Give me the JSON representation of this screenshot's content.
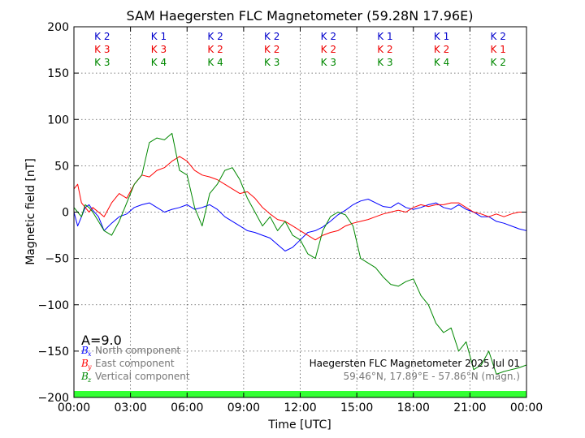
{
  "chart_data": {
    "type": "line",
    "title": "SAM Haegersten FLC Magnetometer (59.28N 17.96E)",
    "xlabel": "Time [UTC]",
    "ylabel": "Magnetic field [nT]",
    "xlim": [
      0,
      24
    ],
    "ylim": [
      -200,
      200
    ],
    "x_ticks": [
      0,
      3,
      6,
      9,
      12,
      15,
      18,
      21,
      24
    ],
    "x_tick_labels": [
      "00:00",
      "03:00",
      "06:00",
      "09:00",
      "12:00",
      "15:00",
      "18:00",
      "21:00",
      "00:00"
    ],
    "y_ticks": [
      -200,
      -150,
      -100,
      -50,
      0,
      50,
      100,
      150,
      200
    ],
    "y_tick_labels": [
      "−200",
      "−150",
      "−100",
      "−50",
      "0",
      "50",
      "100",
      "150",
      "200"
    ],
    "grid": true,
    "k_index": {
      "centers": [
        1.5,
        4.5,
        7.5,
        10.5,
        13.5,
        16.5,
        19.5,
        22.5
      ],
      "rows": [
        {
          "color": "#0000cc",
          "labels": [
            "K 2",
            "K 1",
            "K 2",
            "K 2",
            "K 2",
            "K 1",
            "K 1",
            "K 2"
          ]
        },
        {
          "color": "#ee0000",
          "labels": [
            "K 3",
            "K 3",
            "K 2",
            "K 2",
            "K 2",
            "K 2",
            "K 2",
            "K 1"
          ]
        },
        {
          "color": "#008800",
          "labels": [
            "K 3",
            "K 4",
            "K 4",
            "K 3",
            "K 3",
            "K 3",
            "K 4",
            "K 2"
          ]
        }
      ]
    },
    "activity_band": {
      "color": "#33ff33",
      "y_range": [
        -200,
        -193
      ]
    },
    "series": [
      {
        "name": "North component",
        "symbol": "B",
        "subscript": "x",
        "color": "#0000ff",
        "x": [
          0,
          0.2,
          0.4,
          0.6,
          0.8,
          1.0,
          1.3,
          1.6,
          2.0,
          2.4,
          2.8,
          3.2,
          3.6,
          4.0,
          4.4,
          4.8,
          5.2,
          5.6,
          6.0,
          6.4,
          6.8,
          7.2,
          7.6,
          8.0,
          8.4,
          8.8,
          9.2,
          9.6,
          10.0,
          10.4,
          10.8,
          11.2,
          11.6,
          12.0,
          12.4,
          12.8,
          13.2,
          13.6,
          14.0,
          14.4,
          14.8,
          15.2,
          15.6,
          16.0,
          16.4,
          16.8,
          17.2,
          17.6,
          18.0,
          18.4,
          18.8,
          19.2,
          19.6,
          20.0,
          20.4,
          20.8,
          21.2,
          21.6,
          22.0,
          22.4,
          22.8,
          23.2,
          23.6,
          24.0
        ],
        "y": [
          0,
          -15,
          -5,
          5,
          8,
          2,
          -5,
          -20,
          -12,
          -5,
          -2,
          5,
          8,
          10,
          5,
          0,
          3,
          5,
          8,
          3,
          5,
          8,
          3,
          -5,
          -10,
          -15,
          -20,
          -22,
          -25,
          -28,
          -35,
          -42,
          -38,
          -30,
          -22,
          -20,
          -16,
          -10,
          -3,
          2,
          8,
          12,
          14,
          10,
          6,
          5,
          10,
          5,
          3,
          5,
          8,
          10,
          5,
          3,
          8,
          3,
          0,
          -5,
          -5,
          -10,
          -12,
          -15,
          -18,
          -20
        ]
      },
      {
        "name": "East component",
        "symbol": "B",
        "subscript": "y",
        "color": "#ff0000",
        "x": [
          0,
          0.2,
          0.4,
          0.6,
          0.8,
          1.0,
          1.3,
          1.6,
          2.0,
          2.4,
          2.8,
          3.2,
          3.6,
          4.0,
          4.4,
          4.8,
          5.2,
          5.6,
          6.0,
          6.4,
          6.8,
          7.2,
          7.6,
          8.0,
          8.4,
          8.8,
          9.2,
          9.6,
          10.0,
          10.4,
          10.8,
          11.2,
          11.6,
          12.0,
          12.4,
          12.8,
          13.2,
          13.6,
          14.0,
          14.4,
          14.8,
          15.2,
          15.6,
          16.0,
          16.4,
          16.8,
          17.2,
          17.6,
          18.0,
          18.4,
          18.8,
          19.2,
          19.6,
          20.0,
          20.4,
          20.8,
          21.2,
          21.6,
          22.0,
          22.4,
          22.8,
          23.2,
          23.6,
          24.0
        ],
        "y": [
          25,
          30,
          10,
          5,
          0,
          5,
          0,
          -5,
          10,
          20,
          15,
          30,
          40,
          38,
          45,
          48,
          55,
          60,
          55,
          45,
          40,
          38,
          35,
          30,
          25,
          20,
          22,
          15,
          5,
          -2,
          -8,
          -10,
          -15,
          -20,
          -25,
          -30,
          -25,
          -22,
          -20,
          -15,
          -12,
          -10,
          -8,
          -5,
          -2,
          0,
          2,
          0,
          5,
          8,
          6,
          8,
          8,
          10,
          10,
          5,
          0,
          -2,
          -5,
          -2,
          -5,
          -2,
          0,
          0
        ]
      },
      {
        "name": "Vertical component",
        "symbol": "B",
        "subscript": "z",
        "color": "#008800",
        "x": [
          0,
          0.2,
          0.4,
          0.6,
          0.8,
          1.0,
          1.3,
          1.6,
          2.0,
          2.4,
          2.8,
          3.2,
          3.6,
          4.0,
          4.4,
          4.8,
          5.2,
          5.6,
          6.0,
          6.4,
          6.8,
          7.2,
          7.6,
          8.0,
          8.4,
          8.8,
          9.2,
          9.6,
          10.0,
          10.4,
          10.8,
          11.2,
          11.6,
          12.0,
          12.4,
          12.8,
          13.2,
          13.6,
          14.0,
          14.4,
          14.8,
          15.2,
          15.6,
          16.0,
          16.4,
          16.8,
          17.2,
          17.6,
          18.0,
          18.4,
          18.8,
          19.2,
          19.6,
          20.0,
          20.4,
          20.8,
          21.2,
          21.6,
          22.0,
          22.4,
          22.8,
          23.2,
          23.6,
          24.0
        ],
        "y": [
          5,
          0,
          -5,
          8,
          5,
          0,
          -10,
          -20,
          -25,
          -10,
          10,
          30,
          40,
          75,
          80,
          78,
          85,
          45,
          40,
          5,
          -15,
          20,
          30,
          45,
          48,
          35,
          15,
          0,
          -15,
          -5,
          -20,
          -10,
          -25,
          -30,
          -45,
          -50,
          -20,
          -5,
          0,
          -3,
          -15,
          -50,
          -55,
          -60,
          -70,
          -78,
          -80,
          -75,
          -72,
          -90,
          -100,
          -120,
          -130,
          -125,
          -150,
          -140,
          -170,
          -165,
          -150,
          -175,
          -172,
          -170,
          -168,
          -165
        ]
      }
    ],
    "annotations": {
      "activity": "A=9.0",
      "station": "Haegersten FLC Magnetometer 2025 Jul 01",
      "coords": "59.46°N, 17.89°E - 57.86°N (magn.)"
    }
  }
}
